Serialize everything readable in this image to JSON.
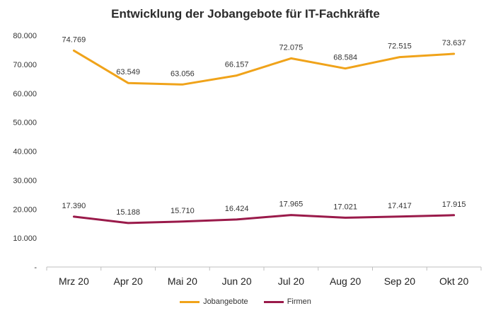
{
  "chart_data": {
    "type": "line",
    "title": "Entwicklung der Jobangebote für IT-Fachkräfte",
    "categories": [
      "Mrz 20",
      "Apr 20",
      "Mai 20",
      "Jun 20",
      "Jul 20",
      "Aug 20",
      "Sep 20",
      "Okt 20"
    ],
    "series": [
      {
        "name": "Jobangebote",
        "color": "#f0a31a",
        "values": [
          74769,
          63549,
          63056,
          66157,
          72075,
          68584,
          72515,
          73637
        ],
        "labels": [
          "74.769",
          "63.549",
          "63.056",
          "66.157",
          "72.075",
          "68.584",
          "72.515",
          "73.637"
        ]
      },
      {
        "name": "Firmen",
        "color": "#9a1a4a",
        "values": [
          17390,
          15188,
          15710,
          16424,
          17965,
          17021,
          17417,
          17915
        ],
        "labels": [
          "17.390",
          "15.188",
          "15.710",
          "16.424",
          "17.965",
          "17.021",
          "17.417",
          "17.915"
        ]
      }
    ],
    "ylim": [
      0,
      80000
    ],
    "yticks": [
      0,
      10000,
      20000,
      30000,
      40000,
      50000,
      60000,
      70000,
      80000
    ],
    "ytick_labels": [
      "-",
      "10.000",
      "20.000",
      "30.000",
      "40.000",
      "50.000",
      "60.000",
      "70.000",
      "80.000"
    ],
    "grid": false,
    "legend_position": "bottom"
  }
}
